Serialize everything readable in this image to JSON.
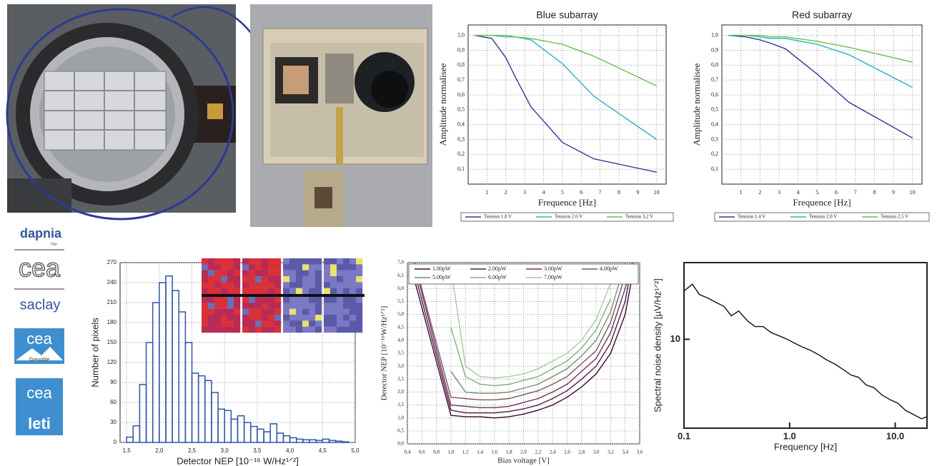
{
  "logos": {
    "dapnia": "dapnia",
    "sap": "SAp",
    "cea1": "cea",
    "saclay": "saclay",
    "cea2": "cea",
    "grenoble": "Grenoble",
    "cea3": "cea",
    "leti": "leti"
  },
  "chart_data": [
    {
      "type": "line",
      "title": "Blue subarray",
      "xlabel": "Frequence [Hz]",
      "ylabel": "Amplitude normalisee",
      "x": [
        0.33,
        1.25,
        2,
        2.5,
        3.33,
        5,
        6.67,
        10
      ],
      "series": [
        {
          "name": "Tension 1.8 V",
          "color": "#2e3d8f",
          "values": [
            1.0,
            0.98,
            0.85,
            0.72,
            0.52,
            0.28,
            0.17,
            0.08
          ]
        },
        {
          "name": "Tension 2.6 V",
          "color": "#27b5bf",
          "values": [
            1.0,
            1.0,
            0.99,
            0.99,
            0.97,
            0.81,
            0.59,
            0.3
          ]
        },
        {
          "name": "Tension 3.2 V",
          "color": "#6cbf4a",
          "values": [
            1.0,
            1.0,
            1.0,
            0.99,
            0.98,
            0.94,
            0.86,
            0.66
          ]
        }
      ],
      "xlim": [
        0,
        10.5
      ],
      "xticks": [
        1,
        2,
        3,
        4,
        5,
        6,
        7,
        8,
        9,
        10
      ],
      "ylim": [
        0,
        1.07
      ],
      "yticks": [
        {
          "value": 0.1,
          "label": "0,1"
        },
        {
          "value": 0.2,
          "label": "0,2"
        },
        {
          "value": 0.3,
          "label": "0,3"
        },
        {
          "value": 0.4,
          "label": "0,4"
        },
        {
          "value": 0.5,
          "label": "0,5"
        },
        {
          "value": 0.6,
          "label": "0,6"
        },
        {
          "value": 0.7,
          "label": "0,7"
        },
        {
          "value": 0.8,
          "label": "0,8"
        },
        {
          "value": 0.9,
          "label": "0,9"
        },
        {
          "value": 1.0,
          "label": "1,0"
        }
      ],
      "grid": true,
      "legend": "below"
    },
    {
      "type": "line",
      "title": "Red subarray",
      "xlabel": "Frequence [Hz]",
      "ylabel": "Amplitude normalisee",
      "x": [
        0.33,
        1.25,
        2,
        2.5,
        3.33,
        5,
        6.67,
        10
      ],
      "series": [
        {
          "name": "Tension 1.4 V",
          "color": "#2e3d8f",
          "values": [
            1.0,
            0.99,
            0.97,
            0.95,
            0.91,
            0.74,
            0.55,
            0.31
          ]
        },
        {
          "name": "Tension 2.0 V",
          "color": "#27b5bf",
          "values": [
            1.0,
            1.0,
            0.99,
            0.98,
            0.98,
            0.94,
            0.87,
            0.65
          ]
        },
        {
          "name": "Tension 2.5 V",
          "color": "#6cbf4a",
          "values": [
            1.0,
            1.0,
            1.0,
            0.99,
            0.99,
            0.96,
            0.92,
            0.82
          ]
        }
      ],
      "xlim": [
        0,
        10.5
      ],
      "xticks": [
        1,
        2,
        3,
        4,
        5,
        6,
        7,
        8,
        9,
        10
      ],
      "ylim": [
        0,
        1.07
      ],
      "yticks": [
        {
          "value": 0.1,
          "label": "0,1"
        },
        {
          "value": 0.2,
          "label": "0,2"
        },
        {
          "value": 0.3,
          "label": "0,3"
        },
        {
          "value": 0.4,
          "label": "0,4"
        },
        {
          "value": 0.5,
          "label": "0,5"
        },
        {
          "value": 0.6,
          "label": "0,6"
        },
        {
          "value": 0.7,
          "label": "0,7"
        },
        {
          "value": 0.8,
          "label": "0,8"
        },
        {
          "value": 0.9,
          "label": "0,9"
        },
        {
          "value": 1.0,
          "label": "1,0"
        }
      ],
      "grid": true,
      "legend": "below"
    },
    {
      "type": "histogram",
      "xlabel": "Detector NEP [10⁻¹⁶ W/Hz¹ᐟ²]",
      "ylabel": "Number of pixels",
      "color": "#2f55a8",
      "bins": [
        1.5,
        1.6,
        1.7,
        1.8,
        1.9,
        2.0,
        2.1,
        2.2,
        2.3,
        2.4,
        2.5,
        2.6,
        2.7,
        2.8,
        2.9,
        3.0,
        3.1,
        3.2,
        3.3,
        3.4,
        3.5,
        3.6,
        3.7,
        3.8,
        3.9,
        4.0,
        4.1,
        4.2,
        4.3,
        4.4,
        4.5,
        4.6,
        4.7,
        4.8,
        4.9
      ],
      "values": [
        8,
        25,
        87,
        150,
        210,
        240,
        250,
        228,
        196,
        150,
        104,
        100,
        93,
        75,
        50,
        48,
        35,
        40,
        30,
        24,
        20,
        16,
        28,
        14,
        10,
        7,
        5,
        4,
        4,
        3,
        5,
        3,
        2,
        1
      ],
      "xlim": [
        1.4,
        5.0
      ],
      "xticks": [
        {
          "value": 1.5,
          "label": "1,5"
        },
        {
          "value": 2.0,
          "label": "2,0"
        },
        {
          "value": 2.5,
          "label": "2,5"
        },
        {
          "value": 3.0,
          "label": "3,0"
        },
        {
          "value": 3.5,
          "label": "3,5"
        },
        {
          "value": 4.0,
          "label": "4,0"
        },
        {
          "value": 4.5,
          "label": "4,5"
        },
        {
          "value": 5.0,
          "label": "5,0"
        }
      ],
      "ylim": [
        0,
        270
      ],
      "yticks": [
        0,
        30,
        60,
        90,
        120,
        150,
        180,
        210,
        240,
        270
      ],
      "grid": true
    },
    {
      "type": "line",
      "xlabel": "Bias voltage [V]",
      "ylabel": "Detector NEP [10⁻¹⁶W/Hz¹ᐟ²]",
      "x": [
        0.5,
        1.0,
        1.2,
        1.4,
        1.6,
        1.8,
        2.0,
        2.2,
        2.4,
        2.6,
        2.8,
        3.0,
        3.2,
        3.4,
        3.5
      ],
      "series": [
        {
          "name": "1.00pW",
          "color": "#3a0a2e",
          "values": [
            6.3,
            1.1,
            1.05,
            1.05,
            1.0,
            1.05,
            1.15,
            1.3,
            1.5,
            1.8,
            2.2,
            2.7,
            3.5,
            5.0,
            6.5
          ]
        },
        {
          "name": "2.00pW",
          "color": "#5a1a45",
          "values": [
            6.6,
            1.3,
            1.2,
            1.2,
            1.2,
            1.25,
            1.35,
            1.5,
            1.75,
            2.05,
            2.5,
            3.0,
            3.9,
            5.5,
            7.0
          ]
        },
        {
          "name": "3.00pW",
          "color": "#6e3355",
          "values": [
            6.9,
            1.5,
            1.45,
            1.4,
            1.4,
            1.45,
            1.6,
            1.75,
            2.0,
            2.3,
            2.8,
            3.3,
            4.3,
            6.0,
            7.0
          ]
        },
        {
          "name": "4.00pW",
          "color": "#7a5766",
          "values": [
            7.0,
            1.8,
            1.75,
            1.7,
            1.7,
            1.75,
            1.9,
            2.05,
            2.3,
            2.6,
            3.1,
            3.6,
            4.7,
            6.5,
            null
          ]
        },
        {
          "name": "5.00pW",
          "color": "#768e72",
          "values": [
            null,
            2.8,
            2.0,
            1.95,
            1.95,
            2.0,
            2.15,
            2.3,
            2.6,
            2.9,
            3.4,
            4.0,
            5.1,
            7.0,
            null
          ]
        },
        {
          "name": "6.00pW",
          "color": "#84ad82",
          "values": [
            null,
            4.5,
            2.6,
            2.3,
            2.25,
            2.3,
            2.45,
            2.6,
            2.9,
            3.2,
            3.7,
            4.4,
            5.6,
            null,
            null
          ]
        },
        {
          "name": "7.00pW",
          "color": "#a3cc9c",
          "values": [
            null,
            6.8,
            3.0,
            2.6,
            2.55,
            2.6,
            2.7,
            2.9,
            3.2,
            3.5,
            4.0,
            4.8,
            6.2,
            null,
            null
          ]
        }
      ],
      "xlim": [
        0.4,
        3.6
      ],
      "xticks": [
        {
          "value": 0.4,
          "label": "0,4"
        },
        {
          "value": 0.6,
          "label": "0,6"
        },
        {
          "value": 0.8,
          "label": "0,8"
        },
        {
          "value": 1.0,
          "label": "1,0"
        },
        {
          "value": 1.2,
          "label": "1,2"
        },
        {
          "value": 1.4,
          "label": "1,4"
        },
        {
          "value": 1.6,
          "label": "1,6"
        },
        {
          "value": 1.8,
          "label": "1,8"
        },
        {
          "value": 2.0,
          "label": "2,0"
        },
        {
          "value": 2.2,
          "label": "2,2"
        },
        {
          "value": 2.4,
          "label": "2,4"
        },
        {
          "value": 2.6,
          "label": "2,6"
        },
        {
          "value": 2.8,
          "label": "2,8"
        },
        {
          "value": 3.0,
          "label": "3,0"
        },
        {
          "value": 3.2,
          "label": "3,2"
        },
        {
          "value": 3.4,
          "label": "3,4"
        },
        {
          "value": 3.6,
          "label": "3,6"
        }
      ],
      "ylim": [
        0,
        7
      ],
      "yticks": [
        {
          "value": 0,
          "label": "0,0"
        },
        {
          "value": 0.5,
          "label": "0,5"
        },
        {
          "value": 1.0,
          "label": "1,0"
        },
        {
          "value": 1.5,
          "label": "1,5"
        },
        {
          "value": 2.0,
          "label": "2,0"
        },
        {
          "value": 2.5,
          "label": "2,5"
        },
        {
          "value": 3.0,
          "label": "3,0"
        },
        {
          "value": 3.5,
          "label": "3,5"
        },
        {
          "value": 4.0,
          "label": "4,0"
        },
        {
          "value": 4.5,
          "label": "4,5"
        },
        {
          "value": 5.0,
          "label": "5,0"
        },
        {
          "value": 5.5,
          "label": "5,5"
        },
        {
          "value": 6.0,
          "label": "6,0"
        },
        {
          "value": 6.5,
          "label": "6,5"
        },
        {
          "value": 7.0,
          "label": "7,0"
        }
      ],
      "grid": true,
      "legend": "top"
    },
    {
      "type": "line",
      "xlabel": "Frequency [Hz]",
      "ylabel": "Spectral noise density [µV/Hz¹ᐟ²]",
      "x": [
        0.1,
        0.12,
        0.14,
        0.17,
        0.2,
        0.24,
        0.28,
        0.33,
        0.4,
        0.47,
        0.56,
        0.67,
        0.8,
        0.95,
        1.1,
        1.3,
        1.6,
        1.9,
        2.2,
        2.7,
        3.2,
        3.8,
        4.5,
        5.3,
        6.3,
        7.5,
        9,
        10.6,
        12.6,
        15,
        17.8,
        20
      ],
      "series": [
        {
          "name": null,
          "color": "#111111",
          "values": [
            20,
            22,
            19,
            18,
            17,
            16,
            14,
            15,
            13,
            12,
            12,
            11,
            10.5,
            10,
            9.5,
            9,
            8.5,
            8,
            7.5,
            7,
            6.5,
            6,
            5.8,
            5.2,
            5,
            4.5,
            4.2,
            4,
            3.6,
            3.4,
            3.2,
            3.3
          ]
        }
      ],
      "xlim": [
        0.1,
        20
      ],
      "xticks": [
        0.1,
        {
          "value": 1,
          "label": "1.0"
        },
        {
          "value": 10,
          "label": "10.0"
        }
      ],
      "ylim": [
        2.8,
        30
      ],
      "yticks": [
        10
      ],
      "xscale": "log",
      "yscale": "log",
      "grid": false
    }
  ]
}
